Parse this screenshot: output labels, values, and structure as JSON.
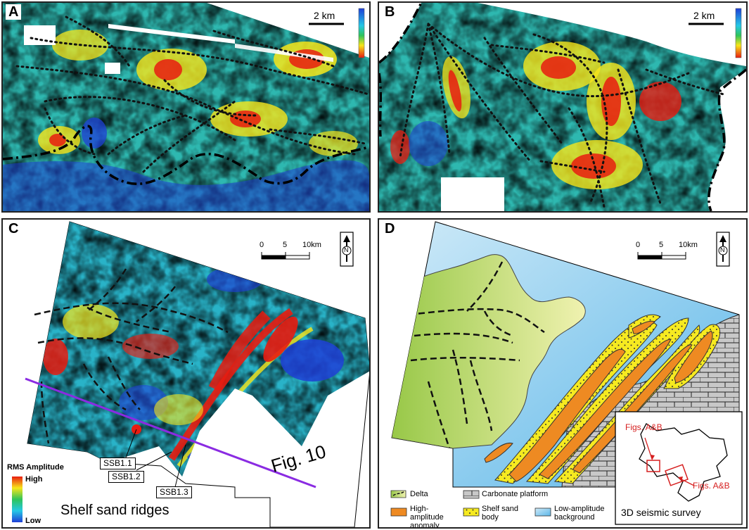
{
  "panels": {
    "a": {
      "letter": "A",
      "scale": "2 km"
    },
    "b": {
      "letter": "B",
      "scale": "2 km"
    },
    "c": {
      "letter": "C",
      "scale_ticks": [
        "0",
        "5",
        "10km"
      ],
      "north": "N",
      "callouts": [
        "SSB1.1",
        "SSB1.2",
        "SSB1.3"
      ],
      "section_line": "Fig. 10",
      "title": "Shelf sand ridges",
      "legend": {
        "title": "RMS Amplitude",
        "high": "High",
        "low": "Low"
      }
    },
    "d": {
      "letter": "D",
      "scale_ticks": [
        "0",
        "5",
        "10km"
      ],
      "north": "N",
      "legend": [
        {
          "key": "delta",
          "label": "Delta"
        },
        {
          "key": "carbonate",
          "label": "Carbonate platform"
        },
        {
          "key": "high_amp",
          "label": "High-amplitude anomaly"
        },
        {
          "key": "shelf_sand",
          "label": "Shelf sand body"
        },
        {
          "key": "low_amp",
          "label": "Low-amplitude background"
        }
      ],
      "inset": {
        "label_top": "Figs. A&B",
        "label_right": "Figs. A&B",
        "title": "3D seismic survey"
      }
    }
  },
  "colors": {
    "amp_low": "#1f3fd6",
    "amp_mid": "#2fc45a",
    "amp_high": "#e81c10",
    "delta": "#c6df7a",
    "high_amp_fill": "#ee8a22",
    "shelf_sand_fill": "#f6ea20",
    "low_amp_bg": "#a9d9f2",
    "section_line": "#8a2be2",
    "inset_marker": "#d61f1f"
  }
}
